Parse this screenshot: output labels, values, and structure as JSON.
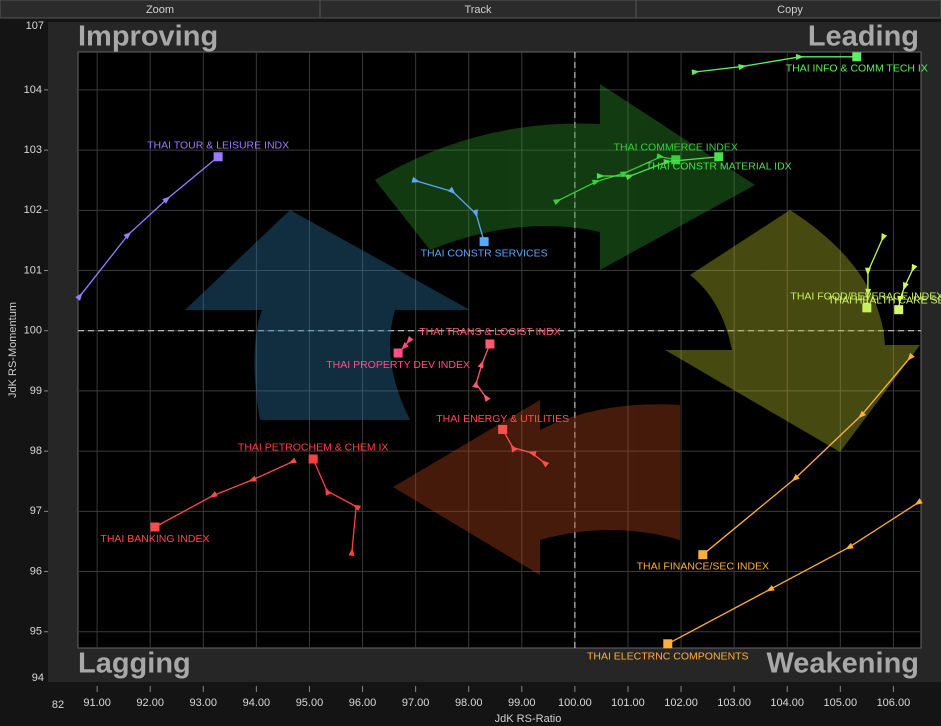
{
  "toolbar": [
    "Zoom",
    "Track",
    "Copy"
  ],
  "chart_data": {
    "type": "rrg",
    "xlabel": "JdK RS-Ratio",
    "ylabel": "JdK RS-Momentum",
    "quadrants": [
      "Improving",
      "Leading",
      "Lagging",
      "Weakening"
    ],
    "y_end_labels": [
      "107",
      "94"
    ],
    "x_end_labels": [
      "82"
    ],
    "center": 100,
    "xlim": [
      90.64,
      106.52
    ],
    "ylim": [
      94.73,
      104.63
    ],
    "xticks": [
      {
        "value": 91,
        "label": "91.00"
      },
      {
        "value": 92,
        "label": "92.00"
      },
      {
        "value": 93,
        "label": "93.00"
      },
      {
        "value": 94,
        "label": "94.00"
      },
      {
        "value": 95,
        "label": "95.00"
      },
      {
        "value": 96,
        "label": "96.00"
      },
      {
        "value": 97,
        "label": "97.00"
      },
      {
        "value": 98,
        "label": "98.00"
      },
      {
        "value": 99,
        "label": "99.00"
      },
      {
        "value": 100,
        "label": "100.00"
      },
      {
        "value": 101,
        "label": "101.00"
      },
      {
        "value": 102,
        "label": "102.00"
      },
      {
        "value": 103,
        "label": "103.00"
      },
      {
        "value": 104,
        "label": "104.00"
      },
      {
        "value": 105,
        "label": "105.00"
      },
      {
        "value": 106,
        "label": "106.00"
      }
    ],
    "yticks": [
      95,
      96,
      97,
      98,
      99,
      100,
      101,
      102,
      103,
      104
    ],
    "grid": true,
    "series": [
      {
        "name": "THAI TOUR & LEISURE INDX",
        "color": "#9b7bff",
        "x": [
          90.68,
          91.59,
          92.32,
          93.28
        ],
        "y": [
          100.58,
          101.6,
          102.19,
          102.89
        ]
      },
      {
        "name": "THAI CONSTR SERVICES",
        "color": "#5aa8ff",
        "x": [
          97.01,
          97.7,
          98.14,
          98.29
        ],
        "y": [
          102.49,
          102.31,
          101.94,
          101.48
        ]
      },
      {
        "name": "THAI COMMERCE INDEX",
        "color": "#38d038",
        "x": [
          99.68,
          100.41,
          100.94,
          101.62,
          101.9
        ],
        "y": [
          102.16,
          102.48,
          102.62,
          102.89,
          102.84
        ]
      },
      {
        "name": "THAI CONSTR MATERIAL IDX",
        "color": "#4be04b",
        "x": [
          100.49,
          101.04,
          101.75,
          102.71
        ],
        "y": [
          102.57,
          102.57,
          102.81,
          102.89
        ]
      },
      {
        "name": "THAI INFO & COMM TECH IX",
        "color": "#5cf05c",
        "x": [
          102.28,
          103.16,
          104.24,
          105.31
        ],
        "y": [
          104.3,
          104.39,
          104.55,
          104.55
        ]
      },
      {
        "name": "THAI FOOD/BEVERAGE INDEX",
        "color": "#c6f25a",
        "x": [
          105.8,
          105.52,
          105.52,
          105.5
        ],
        "y": [
          101.54,
          100.98,
          100.63,
          100.38
        ]
      },
      {
        "name": "THAI HEALTH CARE SERVIC",
        "color": "#d6f86a",
        "x": [
          106.37,
          106.21,
          106.12,
          106.1
        ],
        "y": [
          101.03,
          100.73,
          100.51,
          100.35
        ]
      },
      {
        "name": "THAI TRANS & LOGIST INDX",
        "color": "#ff5a6e",
        "x": [
          98.32,
          98.14,
          98.25,
          98.4
        ],
        "y": [
          98.9,
          99.12,
          99.45,
          99.78
        ]
      },
      {
        "name": "THAI PROPERTY DEV INDEX",
        "color": "#ff4f8a",
        "x": [
          96.87,
          96.78,
          96.67
        ],
        "y": [
          99.83,
          99.73,
          99.63
        ]
      },
      {
        "name": "THAI ENERGY & UTILITIES",
        "color": "#ff5050",
        "x": [
          99.42,
          99.19,
          98.83,
          98.64
        ],
        "y": [
          97.81,
          97.97,
          98.06,
          98.36
        ]
      },
      {
        "name": "THAI PETROCHEM & CHEM IX",
        "color": "#ff4040",
        "x": [
          95.8,
          95.88,
          95.33,
          95.07
        ],
        "y": [
          96.33,
          97.08,
          97.34,
          97.87
        ]
      },
      {
        "name": "THAI BANKING INDEX",
        "color": "#ff4a4a",
        "x": [
          94.67,
          93.92,
          93.18,
          92.09
        ],
        "y": [
          97.82,
          97.52,
          97.26,
          96.74
        ]
      },
      {
        "name": "THAI FINANCE/SEC INDEX",
        "color": "#ffb040",
        "x": [
          106.31,
          105.39,
          104.14,
          102.41
        ],
        "y": [
          99.55,
          98.59,
          97.54,
          96.28
        ]
      },
      {
        "name": "THAI ELECTRNC COMPONENTS",
        "color": "#ffae3a",
        "x": [
          106.46,
          105.16,
          103.67,
          101.75
        ],
        "y": [
          97.14,
          96.4,
          95.7,
          94.8
        ]
      }
    ]
  }
}
